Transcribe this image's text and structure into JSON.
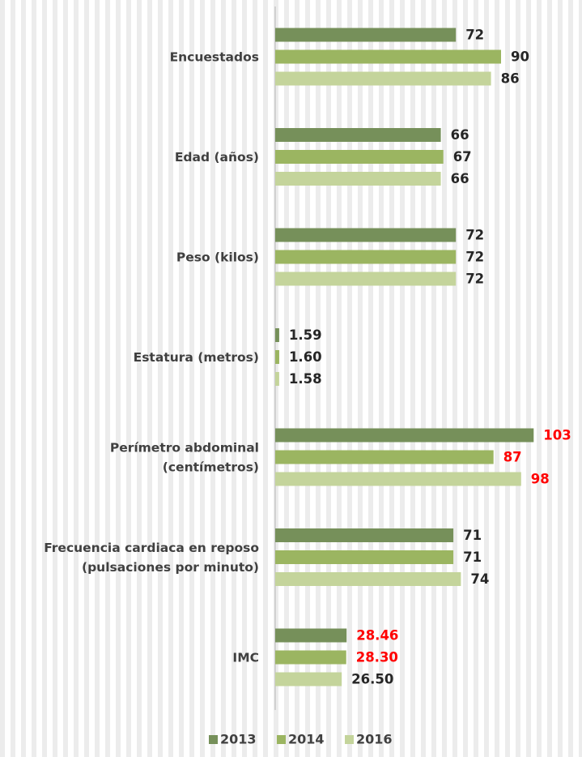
{
  "chart_data": {
    "type": "bar",
    "orientation": "horizontal",
    "categories": [
      [
        "Encuestados"
      ],
      [
        "Edad (años)"
      ],
      [
        "Peso (kilos)"
      ],
      [
        "Estatura (metros)"
      ],
      [
        "Perímetro abdominal",
        "(centímetros)"
      ],
      [
        "Frecuencia cardiaca en reposo",
        "(pulsaciones por minuto)"
      ],
      [
        "IMC"
      ]
    ],
    "series": [
      {
        "name": "2013",
        "color": "#76905a",
        "values": [
          72,
          66,
          72,
          1.59,
          103,
          71,
          28.46
        ],
        "value_labels": [
          "72",
          "66",
          "72",
          "1.59",
          "103",
          "71",
          "28.46"
        ],
        "value_label_colors": [
          "#262626",
          "#262626",
          "#262626",
          "#262626",
          "#ff0000",
          "#262626",
          "#ff0000"
        ]
      },
      {
        "name": "2014",
        "color": "#9bb561",
        "values": [
          90,
          67,
          72,
          1.6,
          87,
          71,
          28.3
        ],
        "value_labels": [
          "90",
          "67",
          "72",
          "1.60",
          "87",
          "71",
          "28.30"
        ],
        "value_label_colors": [
          "#262626",
          "#262626",
          "#262626",
          "#262626",
          "#ff0000",
          "#262626",
          "#ff0000"
        ]
      },
      {
        "name": "2016",
        "color": "#c4d49b",
        "values": [
          86,
          66,
          72,
          1.58,
          98,
          74,
          26.5
        ],
        "value_labels": [
          "86",
          "66",
          "72",
          "1.58",
          "98",
          "74",
          "26.50"
        ],
        "value_label_colors": [
          "#262626",
          "#262626",
          "#262626",
          "#262626",
          "#ff0000",
          "#262626",
          "#262626"
        ]
      }
    ],
    "xlim": [
      0,
      122
    ],
    "legend": "bottom"
  }
}
